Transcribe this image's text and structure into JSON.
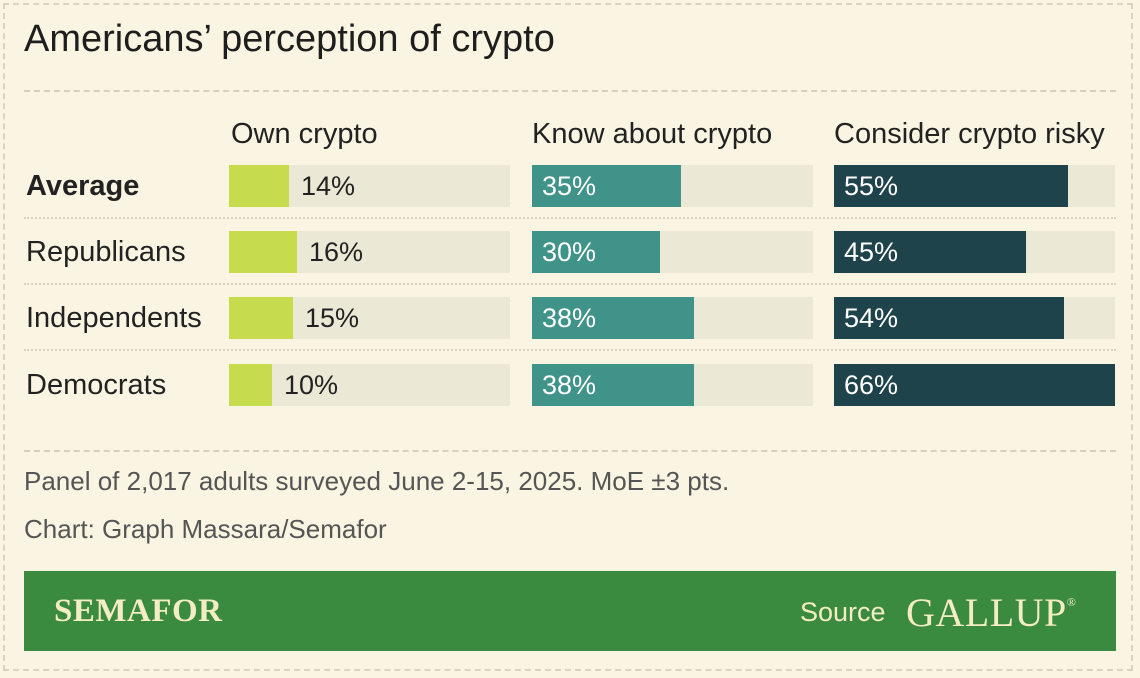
{
  "title": "Americans’ perception of crypto",
  "chart_data": {
    "type": "bar",
    "categories": [
      "Average",
      "Republicans",
      "Independents",
      "Democrats"
    ],
    "series": [
      {
        "name": "Own crypto",
        "values": [
          14,
          16,
          15,
          10
        ],
        "labels": [
          "14%",
          "16%",
          "15%",
          "10%"
        ],
        "color": "#c6dc4c",
        "label_color": "#222222",
        "label_outside": true
      },
      {
        "name": "Know about crypto",
        "values": [
          35,
          30,
          38,
          38
        ],
        "labels": [
          "35%",
          "30%",
          "38%",
          "38%"
        ],
        "color": "#3f9389",
        "label_color": "#ffffff",
        "label_outside": false
      },
      {
        "name": "Consider crypto risky",
        "values": [
          55,
          45,
          54,
          66
        ],
        "labels": [
          "55%",
          "45%",
          "54%",
          "66%"
        ],
        "color": "#1f434a",
        "label_color": "#ffffff",
        "label_outside": false
      }
    ],
    "unit": "%",
    "xlim": [
      0,
      66
    ],
    "colors": {
      "track": "#ece8d6",
      "background": "#f9f5e2"
    }
  },
  "notes": {
    "survey": "Panel of 2,017 adults surveyed June 2-15, 2025. MoE ±3 pts.",
    "credit": "Chart: Graph Massara/Semafor"
  },
  "footer": {
    "brand": "SEMAFOR",
    "source_label": "Source",
    "source_name": "GALLUP",
    "source_mark": "®",
    "background": "#3a8a3f"
  }
}
